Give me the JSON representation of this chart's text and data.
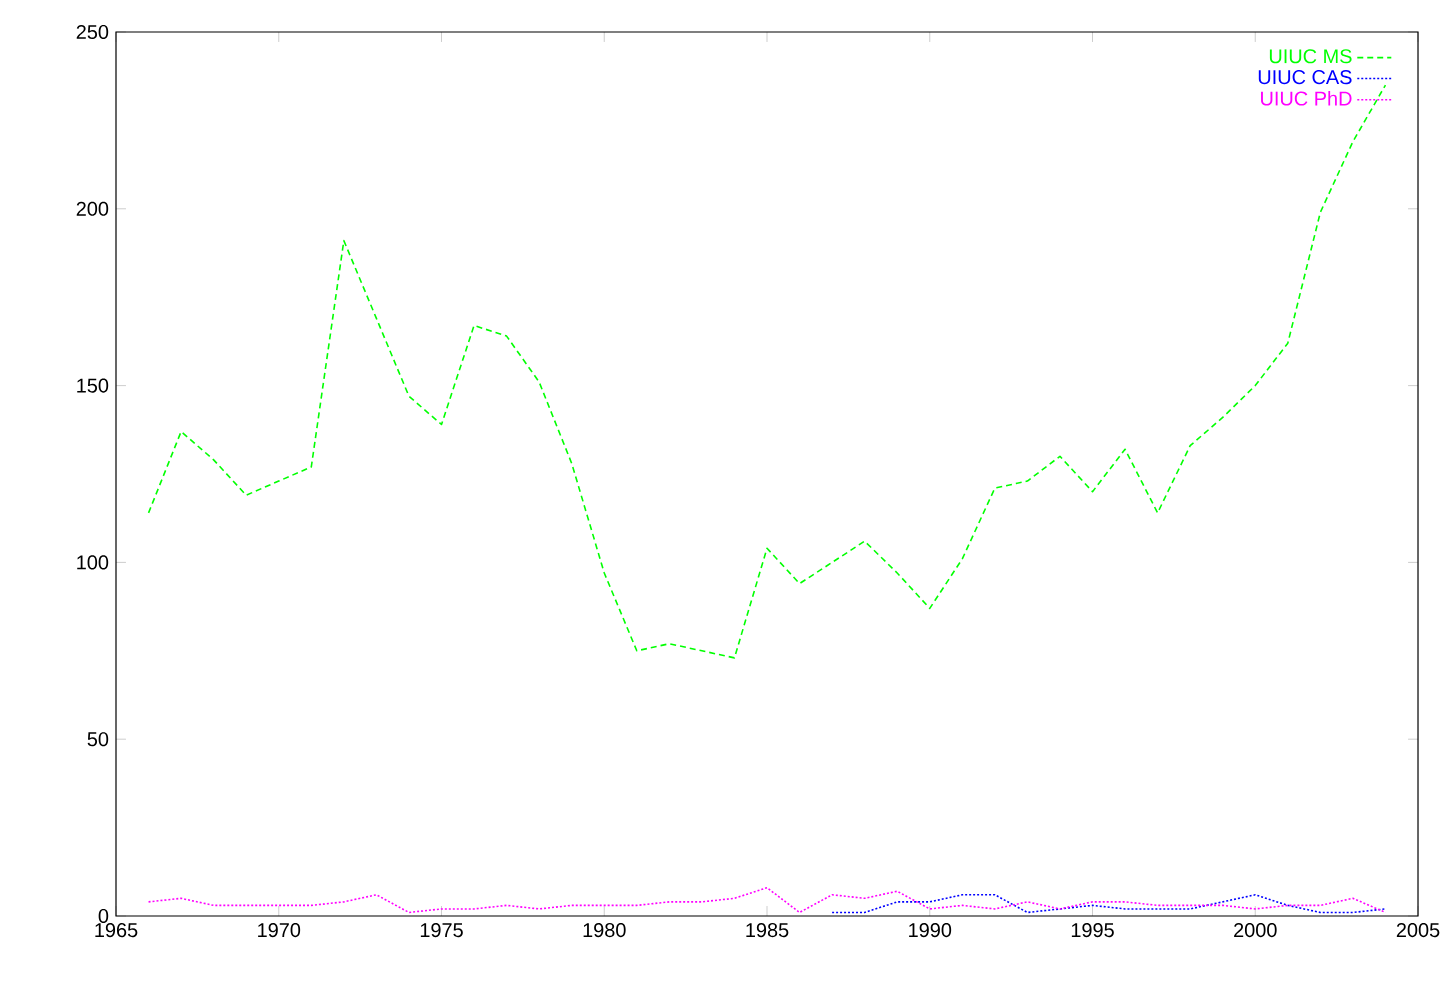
{
  "chart_data": {
    "type": "line",
    "x": [
      1966,
      1967,
      1968,
      1969,
      1970,
      1971,
      1972,
      1973,
      1974,
      1975,
      1976,
      1977,
      1978,
      1979,
      1980,
      1981,
      1982,
      1983,
      1984,
      1985,
      1986,
      1987,
      1988,
      1989,
      1990,
      1991,
      1992,
      1993,
      1994,
      1995,
      1996,
      1997,
      1998,
      1999,
      2000,
      2001,
      2002,
      2003,
      2004
    ],
    "series": [
      {
        "name": "UIUC MS",
        "color": "#00ff00",
        "line_style": "dashed",
        "values": [
          114,
          137,
          129,
          119,
          123,
          127,
          191,
          169,
          147,
          139,
          167,
          164,
          151,
          128,
          97,
          75,
          77,
          75,
          73,
          104,
          94,
          100,
          106,
          97,
          87,
          101,
          121,
          123,
          130,
          120,
          132,
          114,
          133,
          141,
          150,
          162,
          199,
          219,
          235
        ]
      },
      {
        "name": "UIUC CAS",
        "color": "#0000ff",
        "line_style": "dotted",
        "x": [
          1987,
          1988,
          1989,
          1990,
          1991,
          1992,
          1993,
          1994,
          1995,
          1996,
          1997,
          1998,
          1999,
          2000,
          2001,
          2002,
          2003,
          2004
        ],
        "values": [
          1,
          1,
          4,
          4,
          6,
          6,
          1,
          2,
          3,
          2,
          2,
          2,
          4,
          6,
          3,
          1,
          1,
          2
        ]
      },
      {
        "name": "UIUC PhD",
        "color": "#ff00ff",
        "line_style": "dotted",
        "values": [
          4,
          5,
          3,
          3,
          3,
          3,
          4,
          6,
          1,
          2,
          2,
          3,
          2,
          3,
          3,
          3,
          4,
          4,
          5,
          8,
          1,
          6,
          5,
          7,
          2,
          3,
          2,
          4,
          2,
          4,
          4,
          3,
          3,
          3,
          2,
          3,
          3,
          5,
          1
        ]
      }
    ],
    "xlim": [
      1965,
      2005
    ],
    "ylim": [
      0,
      250
    ],
    "xticks": [
      1965,
      1970,
      1975,
      1980,
      1985,
      1990,
      1995,
      2000,
      2005
    ],
    "yticks": [
      0,
      50,
      100,
      150,
      200,
      250
    ],
    "legend": "top right"
  }
}
